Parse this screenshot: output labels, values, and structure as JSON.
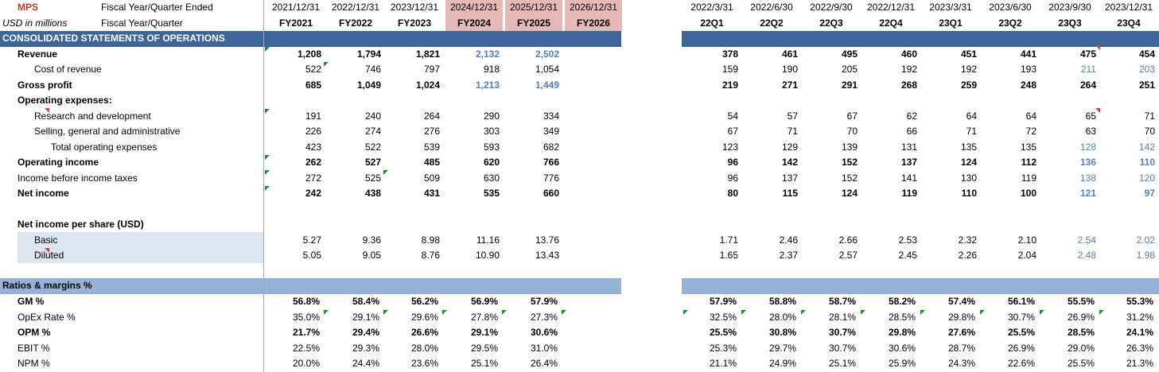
{
  "sheet": {
    "company": "MPS",
    "units": "USD in millions",
    "label_ended": "Fiscal Year/Quarter Ended",
    "label_fq": "Fiscal Year/Quarter",
    "section_ops": "CONSOLIDATED STATEMENTS OF OPERATIONS",
    "section_ratios": "Ratios & margins %",
    "eps_header": "Net income per share (USD)"
  },
  "colors": {
    "header_band": "#3c6699",
    "ratios_band": "#95b3d7",
    "highlight": "#e6b8b7",
    "estimate_text": "#4f81bd",
    "label_shade": "#dce6f1"
  },
  "years": {
    "dates": [
      "2021/12/31",
      "2022/12/31",
      "2023/12/31",
      "2024/12/31",
      "2025/12/31",
      "2026/12/31"
    ],
    "labels": [
      "FY2021",
      "FY2022",
      "FY2023",
      "FY2024",
      "FY2025",
      "FY2026"
    ]
  },
  "quarters": {
    "dates": [
      "2022/3/31",
      "2022/6/30",
      "2022/9/30",
      "2022/12/31",
      "2023/3/31",
      "2023/6/30",
      "2023/9/30",
      "2023/12/31"
    ],
    "labels": [
      "22Q1",
      "22Q2",
      "22Q3",
      "22Q4",
      "23Q1",
      "23Q2",
      "23Q3",
      "23Q4"
    ]
  },
  "rows": [
    {
      "label": "Revenue",
      "bold": true,
      "indent": 1,
      "y": [
        "1,208",
        "1,794",
        "1,821",
        "2,132",
        "2,502",
        ""
      ],
      "q": [
        "378",
        "461",
        "495",
        "460",
        "451",
        "441",
        "475",
        "454"
      ]
    },
    {
      "label": "Cost of revenue",
      "bold": false,
      "indent": 2,
      "y": [
        "522",
        "746",
        "797",
        "918",
        "1,054",
        ""
      ],
      "q": [
        "159",
        "190",
        "205",
        "192",
        "192",
        "193",
        "211",
        "203"
      ]
    },
    {
      "label": "Gross profit",
      "bold": true,
      "indent": 1,
      "y": [
        "685",
        "1,049",
        "1,024",
        "1,213",
        "1,449",
        ""
      ],
      "q": [
        "219",
        "271",
        "291",
        "268",
        "259",
        "248",
        "264",
        "251"
      ]
    },
    {
      "label": "Operating expenses:",
      "bold": true,
      "indent": 1,
      "y": [
        "",
        "",
        "",
        "",
        "",
        ""
      ],
      "q": [
        "",
        "",
        "",
        "",
        "",
        "",
        "",
        ""
      ]
    },
    {
      "label": "Research and development",
      "bold": false,
      "indent": 2,
      "y": [
        "191",
        "240",
        "264",
        "290",
        "334",
        ""
      ],
      "q": [
        "54",
        "57",
        "67",
        "62",
        "64",
        "64",
        "65",
        "71"
      ]
    },
    {
      "label": "Selling, general and administrative",
      "bold": false,
      "indent": 2,
      "y": [
        "226",
        "274",
        "276",
        "303",
        "349",
        ""
      ],
      "q": [
        "67",
        "71",
        "70",
        "66",
        "71",
        "72",
        "63",
        "70"
      ]
    },
    {
      "label": "Total operating expenses",
      "bold": false,
      "indent": 3,
      "y": [
        "423",
        "522",
        "539",
        "593",
        "682",
        ""
      ],
      "q": [
        "123",
        "129",
        "139",
        "131",
        "135",
        "135",
        "128",
        "142"
      ]
    },
    {
      "label": "Operating income",
      "bold": true,
      "indent": 1,
      "y": [
        "262",
        "527",
        "485",
        "620",
        "766",
        ""
      ],
      "q": [
        "96",
        "142",
        "152",
        "137",
        "124",
        "112",
        "136",
        "110"
      ]
    },
    {
      "label": "Income before income taxes",
      "bold": false,
      "indent": 1,
      "y": [
        "272",
        "525",
        "509",
        "630",
        "776",
        ""
      ],
      "q": [
        "96",
        "137",
        "152",
        "141",
        "130",
        "119",
        "138",
        "120"
      ]
    },
    {
      "label": "Net income",
      "bold": true,
      "indent": 1,
      "y": [
        "242",
        "438",
        "431",
        "535",
        "660",
        ""
      ],
      "q": [
        "80",
        "115",
        "124",
        "119",
        "110",
        "100",
        "121",
        "97"
      ]
    },
    {
      "label": "",
      "bold": false,
      "indent": 1,
      "y": [
        "",
        "",
        "",
        "",
        "",
        ""
      ],
      "q": [
        "",
        "",
        "",
        "",
        "",
        "",
        "",
        ""
      ]
    },
    {
      "label": "Net income per share (USD)",
      "bold": true,
      "indent": 1,
      "y": [
        "",
        "",
        "",
        "",
        "",
        ""
      ],
      "q": [
        "",
        "",
        "",
        "",
        "",
        "",
        "",
        ""
      ]
    },
    {
      "label": "Basic",
      "bold": false,
      "indent": 2,
      "y": [
        "5.27",
        "9.36",
        "8.98",
        "11.16",
        "13.76",
        ""
      ],
      "q": [
        "1.71",
        "2.46",
        "2.66",
        "2.53",
        "2.32",
        "2.10",
        "2.54",
        "2.02"
      ]
    },
    {
      "label": "Diluted",
      "bold": false,
      "indent": 2,
      "y": [
        "5.05",
        "9.05",
        "8.76",
        "10.90",
        "13.43",
        ""
      ],
      "q": [
        "1.65",
        "2.37",
        "2.57",
        "2.45",
        "2.26",
        "2.04",
        "2.48",
        "1.98"
      ]
    }
  ],
  "ratios": [
    {
      "label": "GM %",
      "bold": true,
      "y": [
        "56.8%",
        "58.4%",
        "56.2%",
        "56.9%",
        "57.9%",
        ""
      ],
      "q": [
        "57.9%",
        "58.8%",
        "58.7%",
        "58.2%",
        "57.4%",
        "56.1%",
        "55.5%",
        "55.3%"
      ]
    },
    {
      "label": "OpEx Rate %",
      "bold": false,
      "y": [
        "35.0%",
        "29.1%",
        "29.6%",
        "27.8%",
        "27.3%",
        ""
      ],
      "q": [
        "32.5%",
        "28.0%",
        "28.1%",
        "28.5%",
        "29.8%",
        "30.7%",
        "26.9%",
        "31.2%"
      ]
    },
    {
      "label": "OPM %",
      "bold": true,
      "y": [
        "21.7%",
        "29.4%",
        "26.6%",
        "29.1%",
        "30.6%",
        ""
      ],
      "q": [
        "25.5%",
        "30.8%",
        "30.7%",
        "29.8%",
        "27.6%",
        "25.5%",
        "28.5%",
        "24.1%"
      ]
    },
    {
      "label": "EBIT %",
      "bold": false,
      "y": [
        "22.5%",
        "29.3%",
        "28.0%",
        "29.5%",
        "31.0%",
        ""
      ],
      "q": [
        "25.3%",
        "29.7%",
        "30.7%",
        "30.6%",
        "28.7%",
        "26.9%",
        "29.0%",
        "26.3%"
      ]
    },
    {
      "label": "NPM %",
      "bold": false,
      "y": [
        "20.0%",
        "24.4%",
        "23.6%",
        "25.1%",
        "26.4%",
        ""
      ],
      "q": [
        "21.1%",
        "24.9%",
        "25.1%",
        "25.9%",
        "24.3%",
        "22.6%",
        "25.5%",
        "21.3%"
      ]
    }
  ]
}
